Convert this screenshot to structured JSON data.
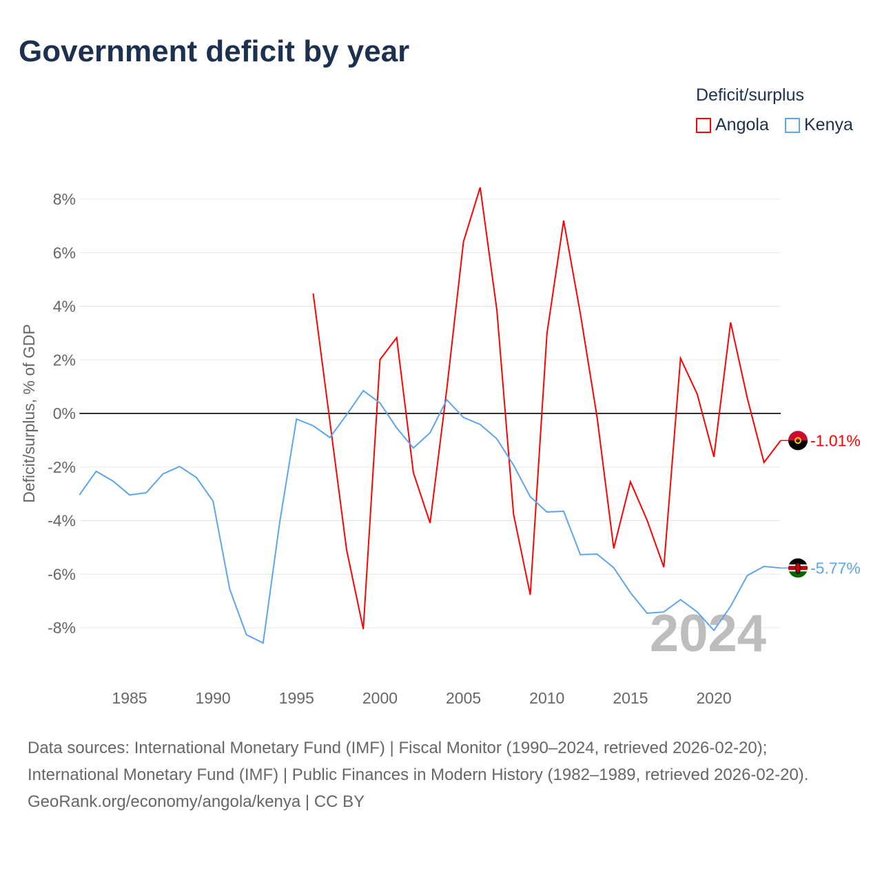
{
  "chart_data": {
    "type": "line",
    "title": "Government deficit by year",
    "ylabel": "Deficit/surplus, % of GDP",
    "xlabel": "",
    "xlim": [
      1982,
      2024
    ],
    "ylim": [
      -9.5,
      8.5
    ],
    "yticks": [
      -8,
      -6,
      -4,
      -2,
      0,
      2,
      4,
      6,
      8
    ],
    "ytick_labels": [
      "-8%",
      "-6%",
      "-4%",
      "-2%",
      "0%",
      "2%",
      "4%",
      "6%",
      "8%"
    ],
    "xticks": [
      1985,
      1990,
      1995,
      2000,
      2005,
      2010,
      2015,
      2020
    ],
    "xtick_labels": [
      "1985",
      "1990",
      "1995",
      "2000",
      "2005",
      "2010",
      "2015",
      "2020"
    ],
    "grid": true,
    "legend_title": "Deficit/surplus",
    "legend_position": "top-right",
    "year_watermark": "2024",
    "series": [
      {
        "name": "Angola",
        "color": "#ff0000",
        "end_label": "-1.01%",
        "x": [
          1996,
          1997,
          1998,
          1999,
          2000,
          2001,
          2002,
          2003,
          2004,
          2005,
          2006,
          2007,
          2008,
          2009,
          2010,
          2011,
          2012,
          2013,
          2014,
          2015,
          2016,
          2017,
          2018,
          2019,
          2020,
          2021,
          2022,
          2023,
          2024
        ],
        "y": [
          4.48,
          -0.3,
          -5.09,
          -8.05,
          2.01,
          2.83,
          -2.21,
          -4.09,
          0.9,
          6.41,
          8.44,
          3.86,
          -3.76,
          -6.77,
          2.98,
          7.2,
          3.73,
          -0.13,
          -5.04,
          -2.55,
          -3.99,
          -5.74,
          2.06,
          0.72,
          -1.62,
          3.4,
          0.57,
          -1.83,
          -1.01
        ]
      },
      {
        "name": "Kenya",
        "color": "#5ba5ee",
        "end_label": "-5.77%",
        "x": [
          1982,
          1983,
          1984,
          1985,
          1986,
          1987,
          1988,
          1989,
          1990,
          1991,
          1992,
          1993,
          1994,
          1995,
          1996,
          1997,
          1998,
          1999,
          2000,
          2001,
          2002,
          2003,
          2004,
          2005,
          2006,
          2007,
          2008,
          2009,
          2010,
          2011,
          2012,
          2013,
          2014,
          2015,
          2016,
          2017,
          2018,
          2019,
          2020,
          2021,
          2022,
          2023,
          2024
        ],
        "y": [
          -3.04,
          -2.16,
          -2.52,
          -3.04,
          -2.96,
          -2.26,
          -1.98,
          -2.39,
          -3.27,
          -6.56,
          -8.26,
          -8.57,
          -4.04,
          -0.21,
          -0.46,
          -0.9,
          -0.05,
          0.85,
          0.39,
          -0.54,
          -1.29,
          -0.72,
          0.51,
          -0.15,
          -0.41,
          -0.95,
          -1.93,
          -3.11,
          -3.68,
          -3.65,
          -5.27,
          -5.25,
          -5.76,
          -6.69,
          -7.46,
          -7.41,
          -6.95,
          -7.41,
          -8.1,
          -7.2,
          -6.05,
          -5.71,
          -5.77
        ]
      }
    ]
  },
  "footer": {
    "sources": "Data sources: International Monetary Fund (IMF) | Fiscal Monitor (1990–2024, retrieved 2026-02-20); International Monetary Fund (IMF) | Public Finances in Modern History (1982–1989, retrieved 2026-02-20).",
    "credit": "GeoRank.org/economy/angola/kenya | CC BY"
  }
}
